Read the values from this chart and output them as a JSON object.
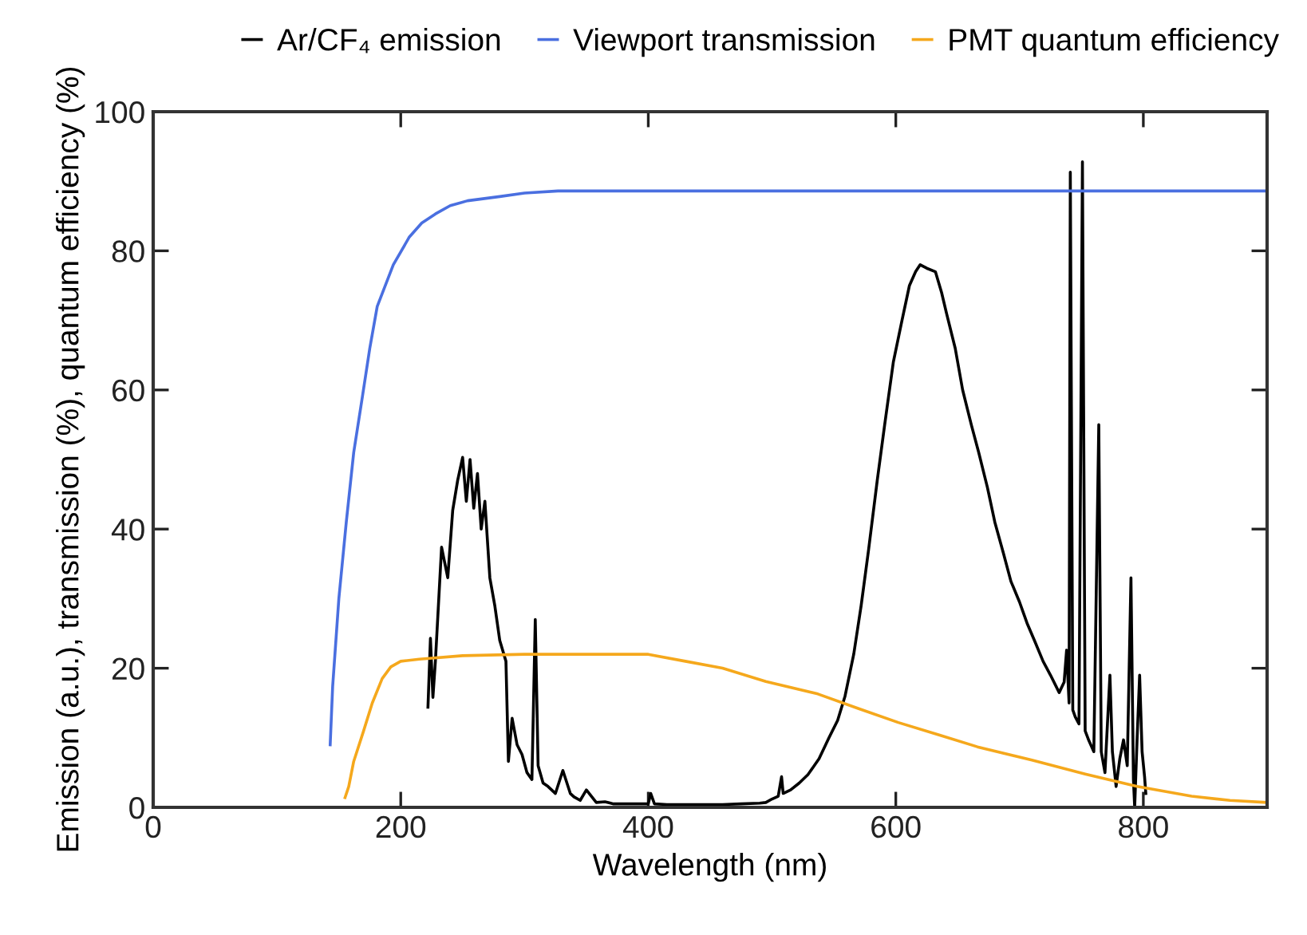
{
  "chart_data": {
    "type": "line",
    "xlabel": "Wavelength (nm)",
    "ylabel": "Emission (a.u.), transmission (%), quantum efficiency (%)",
    "xlim": [
      0,
      900
    ],
    "xticks": [
      0,
      200,
      400,
      600,
      800
    ],
    "ylim": [
      0,
      100
    ],
    "yticks": [
      0,
      20,
      40,
      60,
      80,
      100
    ],
    "grid": false,
    "legend": "top",
    "marker": "none",
    "line_style": "solid",
    "series": [
      {
        "name": "Ar/CF₄ emission",
        "color": "#000000",
        "x": [
          222,
          224,
          226,
          228,
          233,
          238,
          242,
          246,
          250,
          253,
          256,
          259,
          262,
          265,
          268,
          272,
          276,
          280,
          285,
          287,
          290,
          294,
          298,
          302,
          306,
          308.7,
          311,
          315,
          319,
          325,
          331,
          337,
          340,
          345,
          350,
          358,
          365,
          372,
          380,
          390,
          400,
          402,
          405,
          415,
          430,
          445,
          460,
          475,
          490,
          495,
          500,
          505,
          507.7,
          509,
          515,
          522,
          529,
          538,
          546,
          553,
          559,
          566,
          572,
          578,
          585,
          591,
          598,
          605,
          611,
          616,
          619.7,
          625,
          632,
          637,
          641,
          648,
          654,
          661,
          667,
          674,
          680,
          687,
          693,
          700,
          706,
          712,
          719,
          725,
          732,
          736,
          738,
          740,
          741,
          743,
          745,
          748,
          750.8,
          753,
          756,
          760,
          764,
          766,
          769,
          771,
          773,
          775,
          778,
          781,
          784,
          787,
          790,
          792,
          793,
          795,
          797,
          799,
          801,
          802
        ],
        "values": [
          14.4,
          24.3,
          15.8,
          21,
          37.4,
          33,
          42.7,
          47,
          50.3,
          44,
          50,
          43,
          48,
          40,
          44,
          33,
          29,
          24,
          21,
          6.6,
          12.8,
          9,
          7.6,
          5,
          4,
          27,
          6,
          3.5,
          3,
          2,
          5.3,
          2,
          1.5,
          1,
          2.5,
          0.7,
          0.8,
          0.5,
          0.5,
          0.5,
          0.5,
          2,
          0.5,
          0.4,
          0.4,
          0.4,
          0.4,
          0.5,
          0.6,
          0.7,
          1.2,
          1.6,
          4.4,
          2,
          2.5,
          3.5,
          4.7,
          7,
          10,
          12.5,
          16,
          22,
          29,
          37,
          47,
          55,
          64,
          70,
          75,
          77,
          78,
          77.5,
          77,
          74,
          71,
          66,
          60,
          55,
          51,
          46,
          41,
          36.5,
          32.5,
          29.5,
          26.5,
          24,
          21,
          19,
          16.5,
          18,
          22.6,
          15,
          91.3,
          14,
          13,
          12,
          92.8,
          11,
          9.6,
          8,
          55,
          8,
          5,
          12,
          19,
          8,
          3,
          7,
          9.7,
          6,
          33,
          4,
          0,
          10,
          19,
          8,
          4.4,
          2
        ]
      },
      {
        "name": "Viewport transmission",
        "color": "#4a6fe0",
        "x": [
          143,
          145,
          150,
          156,
          162,
          169,
          175,
          181,
          194,
          207,
          217,
          228,
          240,
          254,
          280,
          300,
          327,
          900
        ],
        "values": [
          9,
          17.4,
          30,
          41,
          51,
          59,
          66,
          72,
          78,
          82,
          84,
          85.3,
          86.5,
          87.2,
          87.8,
          88.3,
          88.6,
          88.6
        ]
      },
      {
        "name": "PMT quantum efficiency",
        "color": "#f5a81c",
        "x": [
          155,
          158,
          162,
          170,
          177,
          185,
          192,
          200,
          215,
          250,
          300,
          350,
          400,
          430,
          460,
          495,
          537,
          570,
          602,
          635,
          666,
          710,
          753,
          795,
          839,
          870,
          900
        ],
        "values": [
          1.4,
          3,
          6.6,
          11,
          15,
          18.5,
          20.2,
          21,
          21.3,
          21.8,
          22,
          22,
          22,
          21,
          20,
          18.1,
          16.3,
          14.2,
          12.2,
          10.4,
          8.7,
          6.8,
          4.8,
          3,
          1.6,
          1,
          0.7
        ]
      }
    ]
  }
}
